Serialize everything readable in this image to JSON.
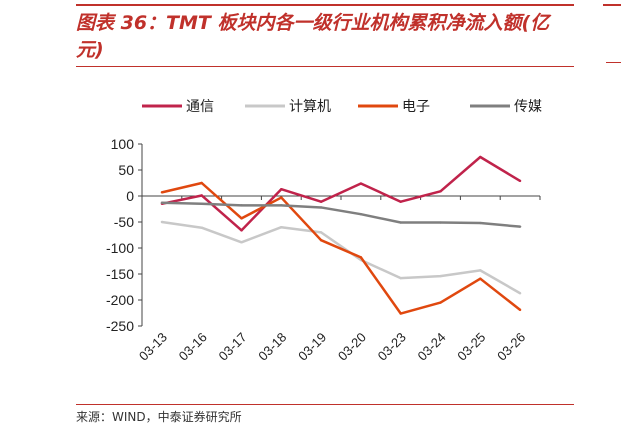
{
  "title": "图表 36：TMT 板块内各一级行业机构累积净流入额(亿元)",
  "source": "来源：WIND，中泰证券研究所",
  "chart_data": {
    "type": "line",
    "title": "",
    "xlabel": "",
    "ylabel": "",
    "categories": [
      "03-13",
      "03-16",
      "03-17",
      "03-18",
      "03-19",
      "03-20",
      "03-23",
      "03-24",
      "03-25",
      "03-26"
    ],
    "ylim": [
      -250,
      100
    ],
    "yticks": [
      100,
      50,
      0,
      -50,
      -100,
      -150,
      -200,
      -250
    ],
    "legend_position": "top",
    "grid": false,
    "series": [
      {
        "name": "通信",
        "color": "#c0234b",
        "values": [
          -15,
          1,
          -66,
          13,
          -11,
          24,
          -11,
          9,
          75,
          29
        ]
      },
      {
        "name": "计算机",
        "color": "#c8c8c8",
        "values": [
          -50,
          -61,
          -89,
          -60,
          -70,
          -123,
          -158,
          -154,
          -143,
          -187
        ]
      },
      {
        "name": "电子",
        "color": "#e0480f",
        "values": [
          7,
          25,
          -43,
          -3,
          -85,
          -118,
          -226,
          -205,
          -159,
          -219
        ]
      },
      {
        "name": "传媒",
        "color": "#7f7f7f",
        "values": [
          -13,
          -15,
          -18,
          -18,
          -22,
          -35,
          -51,
          -51,
          -52,
          -59
        ]
      }
    ]
  }
}
